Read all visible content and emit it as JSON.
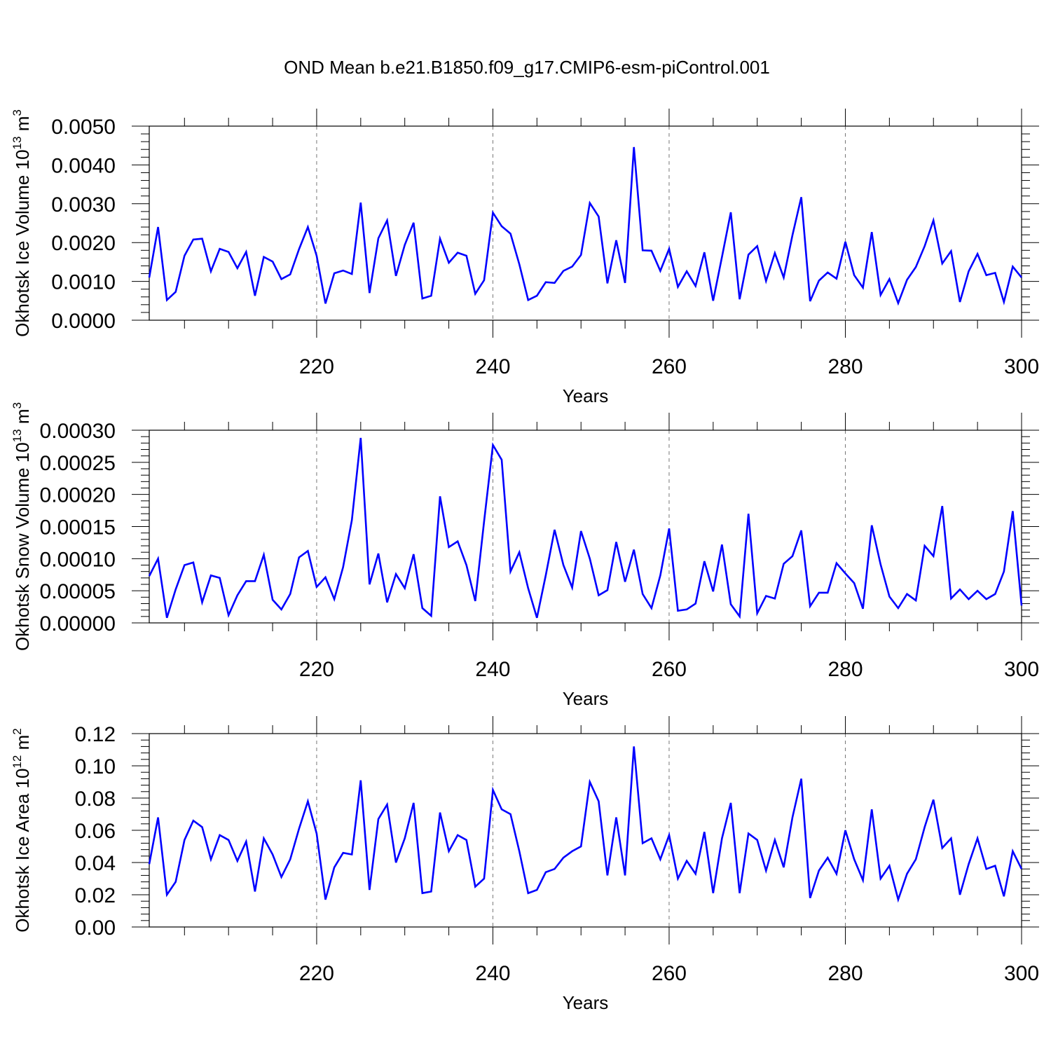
{
  "title": "OND Mean b.e21.B1850.f09_g17.CMIP6-esm-piControl.001",
  "chart_data": [
    {
      "type": "line",
      "ylabel": "Okhotsk Ice Volume 10",
      "yunit_exp": "13",
      "yunit_tail": " m",
      "yunit_exp2": "3",
      "xlabel": "Years",
      "xlim": [
        201,
        300
      ],
      "ylim": [
        0,
        0.005
      ],
      "xticks": [
        220,
        240,
        260,
        280,
        300
      ],
      "xtick_labels": [
        "220",
        "240",
        "260",
        "280",
        "300"
      ],
      "yticks": [
        0,
        0.001,
        0.002,
        0.003,
        0.004,
        0.005
      ],
      "ytick_labels": [
        "0.0000",
        "0.0010",
        "0.0020",
        "0.0030",
        "0.0040",
        "0.0050"
      ],
      "x_start": 201,
      "color": "#0000ff",
      "values": [
        0.0011,
        0.0024,
        0.00052,
        0.00073,
        0.00166,
        0.00208,
        0.0021,
        0.00126,
        0.00184,
        0.00176,
        0.00134,
        0.00176,
        0.00063,
        0.00163,
        0.00151,
        0.00106,
        0.00118,
        0.00183,
        0.0024,
        0.00166,
        0.00043,
        0.00121,
        0.00128,
        0.00119,
        0.00303,
        0.0007,
        0.00211,
        0.00257,
        0.00114,
        0.00194,
        0.00251,
        0.00056,
        0.00063,
        0.0021,
        0.00148,
        0.00174,
        0.00166,
        0.00068,
        0.00103,
        0.00277,
        0.00242,
        0.00223,
        0.00144,
        0.00052,
        0.00063,
        0.00098,
        0.00096,
        0.00127,
        0.00138,
        0.00168,
        0.00302,
        0.00267,
        0.00095,
        0.00206,
        0.00096,
        0.00446,
        0.0018,
        0.00179,
        0.00127,
        0.00184,
        0.00086,
        0.00126,
        0.00088,
        0.00175,
        0.0005,
        0.00163,
        0.00278,
        0.00054,
        0.00169,
        0.00191,
        0.00101,
        0.00173,
        0.0011,
        0.00219,
        0.00317,
        0.00049,
        0.00102,
        0.00123,
        0.00107,
        0.00202,
        0.00116,
        0.00084,
        0.00227,
        0.00065,
        0.00106,
        0.00044,
        0.00104,
        0.00137,
        0.00191,
        0.00257,
        0.00146,
        0.00178,
        0.00047,
        0.00126,
        0.00171,
        0.00116,
        0.00122,
        0.00047,
        0.00138,
        0.0011
      ]
    },
    {
      "type": "line",
      "ylabel": "Okhotsk Snow Volume 10",
      "yunit_exp": "13",
      "yunit_tail": " m",
      "yunit_exp2": "3",
      "xlabel": "Years",
      "xlim": [
        201,
        300
      ],
      "ylim": [
        0,
        0.0003
      ],
      "xticks": [
        220,
        240,
        260,
        280,
        300
      ],
      "xtick_labels": [
        "220",
        "240",
        "260",
        "280",
        "300"
      ],
      "yticks": [
        0,
        5e-05,
        0.0001,
        0.00015,
        0.0002,
        0.00025,
        0.0003
      ],
      "ytick_labels": [
        "0.00000",
        "0.00005",
        "0.00010",
        "0.00015",
        "0.00020",
        "0.00025",
        "0.00030"
      ],
      "x_start": 201,
      "color": "#0000ff",
      "values": [
        7.3e-05,
        0.0001,
        8e-06,
        5.2e-05,
        9e-05,
        9.4e-05,
        3.2e-05,
        7.4e-05,
        7e-05,
        1.2e-05,
        4.3e-05,
        6.5e-05,
        6.5e-05,
        0.000106,
        3.6e-05,
        2.1e-05,
        4.5e-05,
        0.000102,
        0.000112,
        5.6e-05,
        7.1e-05,
        3.7e-05,
        8.7e-05,
        0.00016,
        0.000288,
        6e-05,
        0.000108,
        3.2e-05,
        7.6e-05,
        5.4e-05,
        0.000107,
        2.3e-05,
        1.1e-05,
        0.000197,
        0.000118,
        0.000127,
        9e-05,
        3.4e-05,
        0.000158,
        0.000277,
        0.000254,
        8e-05,
        0.00011,
        5.4e-05,
        8e-06,
        7.4e-05,
        0.000145,
        9e-05,
        5.5e-05,
        0.000143,
        0.0001,
        4.3e-05,
        5.1e-05,
        0.000126,
        6.4e-05,
        0.000114,
        4.5e-05,
        2.3e-05,
        7.4e-05,
        0.000147,
        1.9e-05,
        2.1e-05,
        3e-05,
        9.6e-05,
        4.9e-05,
        0.000122,
        2.9e-05,
        1e-05,
        0.00017,
        1.5e-05,
        4.2e-05,
        3.8e-05,
        9.2e-05,
        0.000104,
        0.000144,
        2.6e-05,
        4.7e-05,
        4.7e-05,
        9.3e-05,
        7.7e-05,
        6.2e-05,
        2.2e-05,
        0.000152,
        9.1e-05,
        4.1e-05,
        2.3e-05,
        4.5e-05,
        3.5e-05,
        0.00012,
        0.000104,
        0.000182,
        3.8e-05,
        5.2e-05,
        3.7e-05,
        5e-05,
        3.7e-05,
        4.5e-05,
        8e-05,
        0.000174,
        2.7e-05
      ]
    },
    {
      "type": "line",
      "ylabel": "Okhotsk Ice Area 10",
      "yunit_exp": "12",
      "yunit_tail": " m",
      "yunit_exp2": "2",
      "xlabel": "Years",
      "xlim": [
        201,
        300
      ],
      "ylim": [
        0,
        0.12
      ],
      "xticks": [
        220,
        240,
        260,
        280,
        300
      ],
      "xtick_labels": [
        "220",
        "240",
        "260",
        "280",
        "300"
      ],
      "yticks": [
        0,
        0.02,
        0.04,
        0.06,
        0.08,
        0.1,
        0.12
      ],
      "ytick_labels": [
        "0.00",
        "0.02",
        "0.04",
        "0.06",
        "0.08",
        "0.10",
        "0.12"
      ],
      "x_start": 201,
      "color": "#0000ff",
      "values": [
        0.039,
        0.068,
        0.02,
        0.028,
        0.054,
        0.066,
        0.062,
        0.042,
        0.057,
        0.054,
        0.041,
        0.053,
        0.022,
        0.055,
        0.045,
        0.031,
        0.042,
        0.061,
        0.078,
        0.058,
        0.017,
        0.037,
        0.046,
        0.045,
        0.091,
        0.023,
        0.067,
        0.076,
        0.04,
        0.055,
        0.077,
        0.021,
        0.022,
        0.071,
        0.047,
        0.057,
        0.054,
        0.025,
        0.03,
        0.085,
        0.073,
        0.07,
        0.047,
        0.021,
        0.023,
        0.034,
        0.036,
        0.043,
        0.047,
        0.05,
        0.09,
        0.078,
        0.032,
        0.068,
        0.032,
        0.112,
        0.052,
        0.055,
        0.042,
        0.057,
        0.03,
        0.041,
        0.033,
        0.059,
        0.021,
        0.055,
        0.077,
        0.021,
        0.058,
        0.054,
        0.035,
        0.054,
        0.037,
        0.068,
        0.092,
        0.018,
        0.035,
        0.043,
        0.033,
        0.06,
        0.042,
        0.029,
        0.073,
        0.03,
        0.038,
        0.017,
        0.033,
        0.042,
        0.062,
        0.079,
        0.049,
        0.055,
        0.02,
        0.039,
        0.055,
        0.036,
        0.038,
        0.019,
        0.047,
        0.036
      ]
    }
  ]
}
